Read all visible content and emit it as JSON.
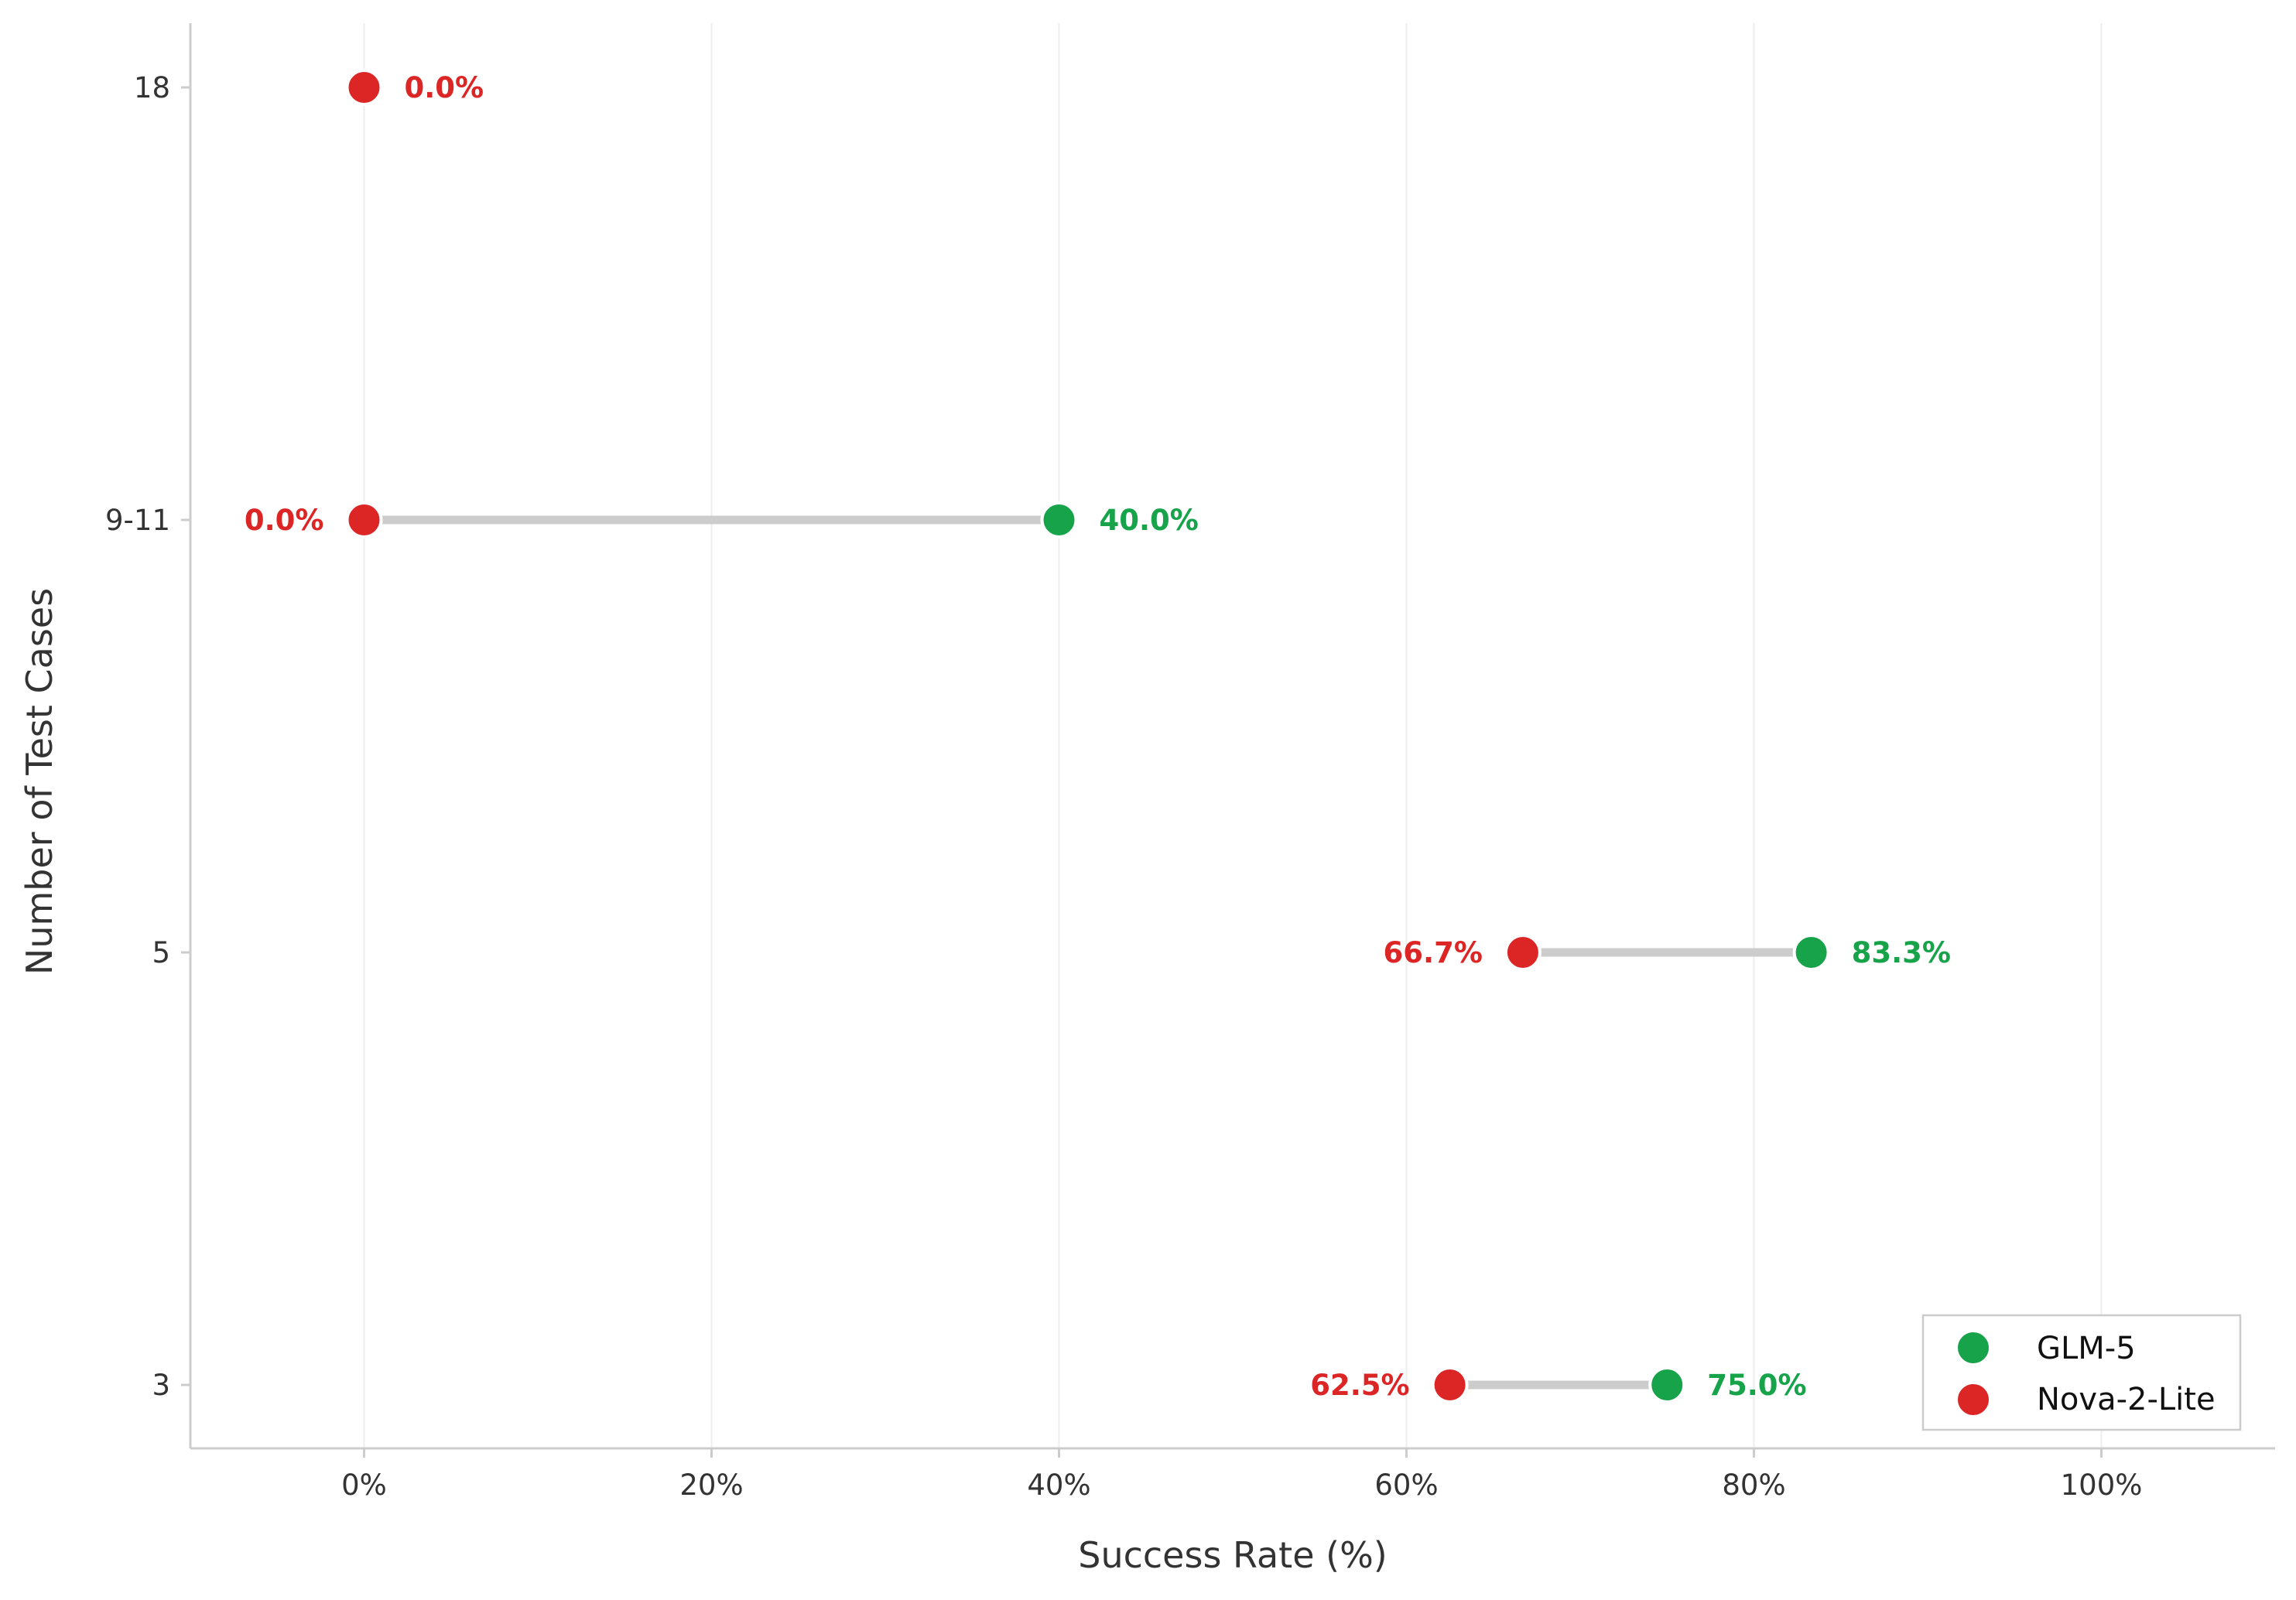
{
  "chart_data": {
    "type": "dumbbell",
    "xlabel": "Success Rate (%)",
    "ylabel": "Number of Test Cases",
    "xlim": [
      -10,
      110
    ],
    "x_ticks": [
      0,
      20,
      40,
      60,
      80,
      100
    ],
    "x_tick_labels": [
      "0%",
      "20%",
      "40%",
      "60%",
      "80%",
      "100%"
    ],
    "categories": [
      "18",
      "9-11",
      "5",
      "3"
    ],
    "series": [
      {
        "name": "GLM-5",
        "color": "#16a34a",
        "values": [
          null,
          40.0,
          83.3,
          75.0
        ],
        "labels": [
          "",
          "40.0%",
          "83.3%",
          "75.0%"
        ]
      },
      {
        "name": "Nova-2-Lite",
        "color": "#dc2626",
        "values": [
          0.0,
          0.0,
          66.7,
          62.5
        ],
        "labels": [
          "0.0%",
          "0.0%",
          "66.7%",
          "62.5%"
        ]
      }
    ],
    "connector_color": "#cccccc",
    "grid": "vertical",
    "legend_position": "bottom-right"
  }
}
